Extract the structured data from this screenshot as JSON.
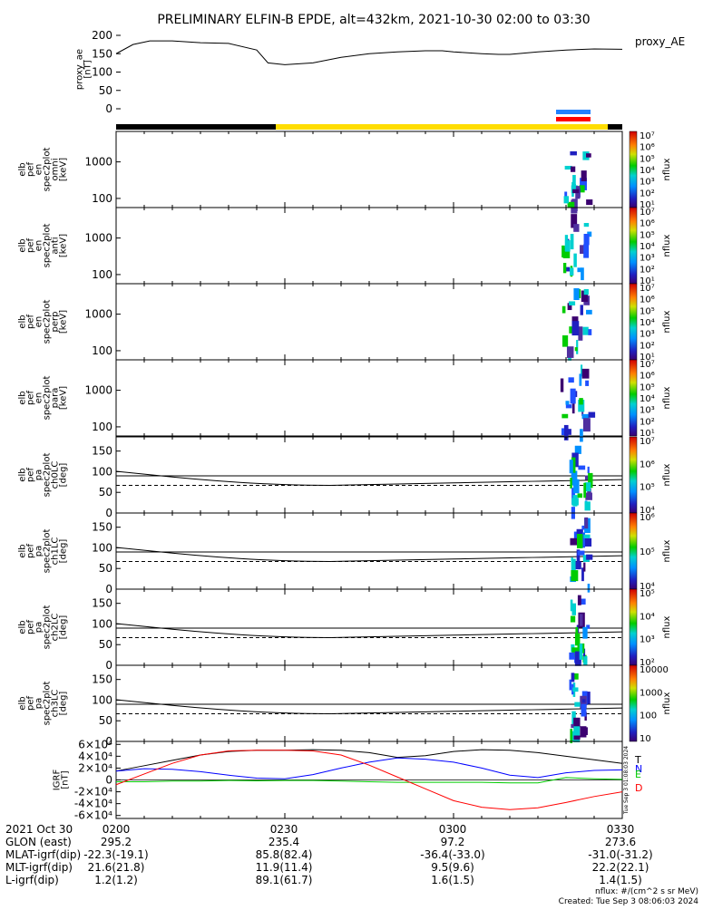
{
  "title": "PRELIMINARY ELFIN-B EPDE, alt=432km, 2021-10-30 02:00 to 03:30",
  "chart_data": [
    {
      "type": "line",
      "ylabel": "proxy_ae\n[nT]",
      "legend": "proxy_AE",
      "ylim": [
        0,
        200
      ],
      "yticks": [
        "0",
        "50",
        "100",
        "150",
        "200"
      ],
      "x_minutes": [
        0,
        3,
        6,
        10,
        15,
        20,
        25,
        27,
        30,
        35,
        40,
        45,
        50,
        55,
        58,
        60,
        65,
        68,
        70,
        75,
        80,
        85,
        90
      ],
      "values": [
        150,
        175,
        185,
        185,
        180,
        178,
        160,
        125,
        120,
        125,
        140,
        150,
        155,
        158,
        158,
        155,
        150,
        148,
        148,
        155,
        160,
        163,
        162
      ]
    },
    {
      "type": "heatmap",
      "panels": [
        {
          "ylabel": "elb\npef\nen\nspec2plot\nomni\n[keV]",
          "yticks": [
            "1000",
            "100"
          ],
          "cbticks": [
            "10⁷",
            "10⁶",
            "10⁵",
            "10⁴",
            "10³",
            "10²",
            "10¹"
          ],
          "cbunit": "nflux"
        },
        {
          "ylabel": "elb\npef\nen\nspec2plot\nanti\n[keV]",
          "yticks": [
            "1000",
            "100"
          ],
          "cbticks": [
            "10⁷",
            "10⁶",
            "10⁵",
            "10⁴",
            "10³",
            "10²",
            "10¹"
          ],
          "cbunit": "nflux"
        },
        {
          "ylabel": "elb\npef\nen\nspec2plot\nperp\n[keV]",
          "yticks": [
            "1000",
            "100"
          ],
          "cbticks": [
            "10⁷",
            "10⁶",
            "10⁵",
            "10⁴",
            "10³",
            "10²",
            "10¹"
          ],
          "cbunit": "nflux"
        },
        {
          "ylabel": "elb\npef\nen\nspec2plot\npara\n[keV]",
          "yticks": [
            "1000",
            "100"
          ],
          "cbticks": [
            "10⁷",
            "10⁶",
            "10⁵",
            "10⁴",
            "10³",
            "10²",
            "10¹"
          ],
          "cbunit": "nflux"
        }
      ]
    },
    {
      "type": "heatmap",
      "panels": [
        {
          "ylabel": "elb\npef\npa\nspec2plot\nch0LC\n[deg]",
          "yticks": [
            "150",
            "100",
            "50",
            "0"
          ],
          "cbticks": [
            "10⁷",
            "10⁶",
            "10⁵",
            "10⁴"
          ],
          "cbunit": "nflux"
        },
        {
          "ylabel": "elb\npef\npa\nspec2plot\nch1LC\n[deg]",
          "yticks": [
            "150",
            "100",
            "50",
            "0"
          ],
          "cbticks": [
            "10⁶",
            "10⁵",
            "10⁴"
          ],
          "cbunit": "nflux"
        },
        {
          "ylabel": "elb\npef\npa\nspec2plot\nch2LC\n[deg]",
          "yticks": [
            "150",
            "100",
            "50",
            "0"
          ],
          "cbticks": [
            "10⁵",
            "10⁴",
            "10³",
            "10²"
          ],
          "cbunit": "nflux"
        },
        {
          "ylabel": "elb\npef\npa\nspec2plot\nch3LC\n[deg]",
          "yticks": [
            "150",
            "100",
            "50",
            "0"
          ],
          "cbticks": [
            "10000",
            "1000",
            "100",
            "10"
          ],
          "cbunit": "nflux"
        }
      ]
    },
    {
      "type": "line",
      "ylabel": "IGRF\n[nT]",
      "yticks": [
        "6×10⁴",
        "4×10⁴",
        "2×10⁴",
        "0",
        "-2×10⁴",
        "-4×10⁴",
        "-6×10⁴"
      ],
      "ylim": [
        -65000,
        65000
      ],
      "x_minutes": [
        0,
        5,
        10,
        15,
        20,
        25,
        30,
        35,
        40,
        45,
        50,
        55,
        60,
        65,
        70,
        75,
        80,
        85,
        90
      ],
      "series": [
        {
          "name": "T",
          "color": "#000000",
          "values": [
            15000,
            24000,
            33000,
            42000,
            48000,
            50000,
            50000,
            51000,
            50000,
            46000,
            38000,
            41000,
            48000,
            51000,
            50000,
            46000,
            40000,
            34000,
            28000
          ]
        },
        {
          "name": "N",
          "color": "#0000ff",
          "values": [
            15000,
            19000,
            18000,
            14000,
            8000,
            3000,
            2000,
            9000,
            20000,
            30000,
            37000,
            35000,
            30000,
            20000,
            8000,
            4000,
            12000,
            16000,
            17000
          ]
        },
        {
          "name": "E",
          "color": "#00cc00",
          "values": [
            -3000,
            -3000,
            -2000,
            -2000,
            -1000,
            -1500,
            -1000,
            -1000,
            -2000,
            -3000,
            -4000,
            -4000,
            -4000,
            -4000,
            -5000,
            -5000,
            4000,
            2000,
            1000
          ]
        },
        {
          "name": "D",
          "color": "#ff0000",
          "values": [
            -8000,
            10000,
            28000,
            42000,
            49000,
            50000,
            50000,
            49000,
            42000,
            25000,
            5000,
            -15000,
            -35000,
            -46000,
            -50000,
            -47000,
            -38000,
            -28000,
            -20000
          ]
        }
      ]
    }
  ],
  "time_ticks": [
    "0200",
    "0230",
    "0300",
    "0330"
  ],
  "ephem": {
    "date": "2021 Oct 30",
    "rows": [
      {
        "label": "GLON (east)",
        "values": [
          "295.2",
          "235.4",
          "97.2",
          "273.6"
        ]
      },
      {
        "label": "MLAT-igrf(dip)",
        "values": [
          "-22.3(-19.1)",
          "85.8(82.4)",
          "-36.4(-33.0)",
          "-31.0(-31.2)"
        ]
      },
      {
        "label": "MLT-igrf(dip)",
        "values": [
          "21.6(21.8)",
          "11.9(11.4)",
          "9.5(9.6)",
          "22.2(22.1)"
        ]
      },
      {
        "label": "L-igrf(dip)",
        "values": [
          "1.2(1.2)",
          "89.1(61.7)",
          "1.6(1.5)",
          "1.4(1.5)"
        ]
      }
    ]
  },
  "footer": {
    "units": "nflux: #/(cm^2 s sr MeV)",
    "created": "Created: Tue Sep  3 08:06:03 2024"
  },
  "igrf_side": "Tue Sep  3 01:08:03 2024"
}
